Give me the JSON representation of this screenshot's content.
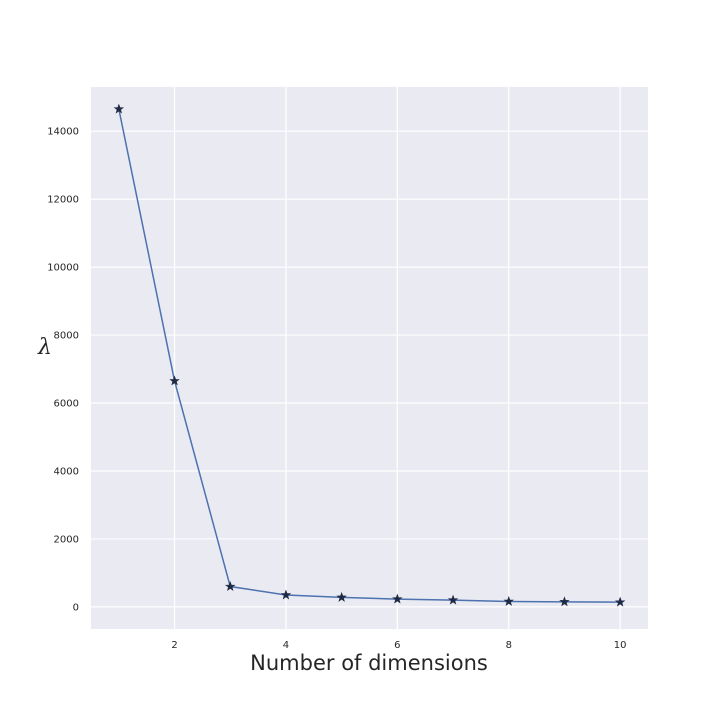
{
  "chart_data": {
    "type": "line",
    "title": "",
    "xlabel": "Number of dimensions",
    "ylabel": "λ",
    "xlim": [
      0.5,
      10.5
    ],
    "ylim": [
      -650,
      15300
    ],
    "x_ticks": [
      2,
      4,
      6,
      8,
      10
    ],
    "y_ticks": [
      0,
      2000,
      4000,
      6000,
      8000,
      10000,
      12000,
      14000
    ],
    "grid": true,
    "marker": "star",
    "colors": {
      "line": "#4c72b0",
      "marker": "#1f2a44",
      "plot_bg": "#eaeaf2",
      "grid": "#ffffff"
    },
    "series": [
      {
        "x": [
          1,
          2,
          3,
          4,
          5,
          6,
          7,
          8,
          9,
          10
        ],
        "y": [
          14650,
          6650,
          600,
          350,
          280,
          230,
          200,
          160,
          150,
          140
        ]
      }
    ]
  }
}
